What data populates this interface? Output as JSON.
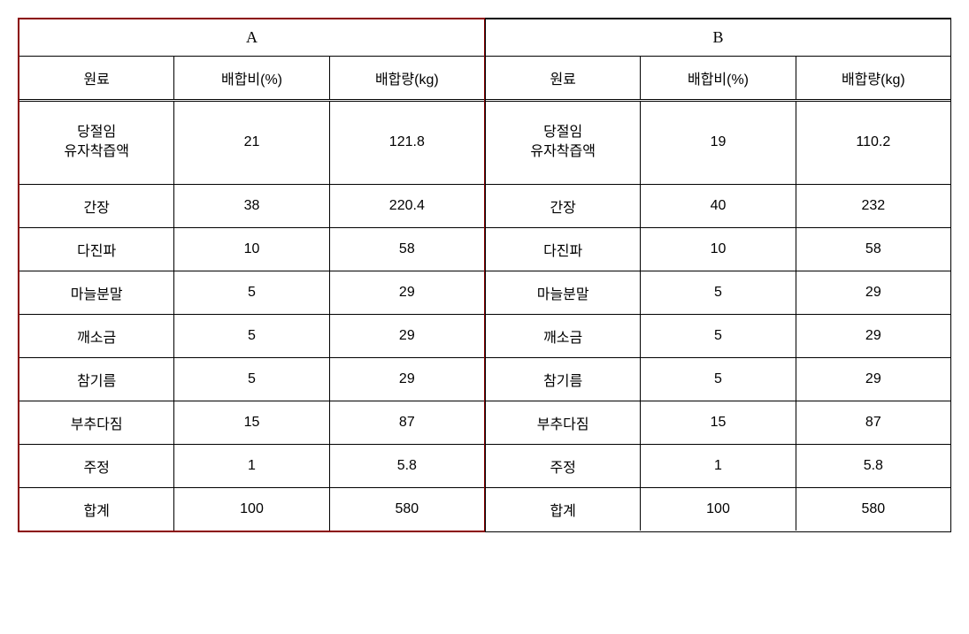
{
  "table": {
    "section_a": {
      "title": "A",
      "headers": [
        "원료",
        "배합비(%)",
        "배합량(kg)"
      ],
      "rows": [
        {
          "ingredient": "당절임\n유자착즙액",
          "ratio": "21",
          "amount": "121.8",
          "tall": true
        },
        {
          "ingredient": "간장",
          "ratio": "38",
          "amount": "220.4",
          "tall": false
        },
        {
          "ingredient": "다진파",
          "ratio": "10",
          "amount": "58",
          "tall": false
        },
        {
          "ingredient": "마늘분말",
          "ratio": "5",
          "amount": "29",
          "tall": false
        },
        {
          "ingredient": "깨소금",
          "ratio": "5",
          "amount": "29",
          "tall": false
        },
        {
          "ingredient": "참기름",
          "ratio": "5",
          "amount": "29",
          "tall": false
        },
        {
          "ingredient": "부추다짐",
          "ratio": "15",
          "amount": "87",
          "tall": false
        },
        {
          "ingredient": "주정",
          "ratio": "1",
          "amount": "5.8",
          "tall": false
        },
        {
          "ingredient": "합계",
          "ratio": "100",
          "amount": "580",
          "tall": false
        }
      ]
    },
    "section_b": {
      "title": "B",
      "headers": [
        "원료",
        "배합비(%)",
        "배합량(kg)"
      ],
      "rows": [
        {
          "ingredient": "당절임\n유자착즙액",
          "ratio": "19",
          "amount": "110.2",
          "tall": true
        },
        {
          "ingredient": "간장",
          "ratio": "40",
          "amount": "232",
          "tall": false
        },
        {
          "ingredient": "다진파",
          "ratio": "10",
          "amount": "58",
          "tall": false
        },
        {
          "ingredient": "마늘분말",
          "ratio": "5",
          "amount": "29",
          "tall": false
        },
        {
          "ingredient": "깨소금",
          "ratio": "5",
          "amount": "29",
          "tall": false
        },
        {
          "ingredient": "참기름",
          "ratio": "5",
          "amount": "29",
          "tall": false
        },
        {
          "ingredient": "부추다짐",
          "ratio": "15",
          "amount": "87",
          "tall": false
        },
        {
          "ingredient": "주정",
          "ratio": "1",
          "amount": "5.8",
          "tall": false
        },
        {
          "ingredient": "합계",
          "ratio": "100",
          "amount": "580",
          "tall": false
        }
      ]
    },
    "colors": {
      "border_red": "#8b0000",
      "border_black": "#000000",
      "background": "#ffffff",
      "text": "#000000"
    },
    "typography": {
      "header_fontsize": 18,
      "cell_fontsize": 16,
      "font_family": "Malgun Gothic"
    }
  }
}
